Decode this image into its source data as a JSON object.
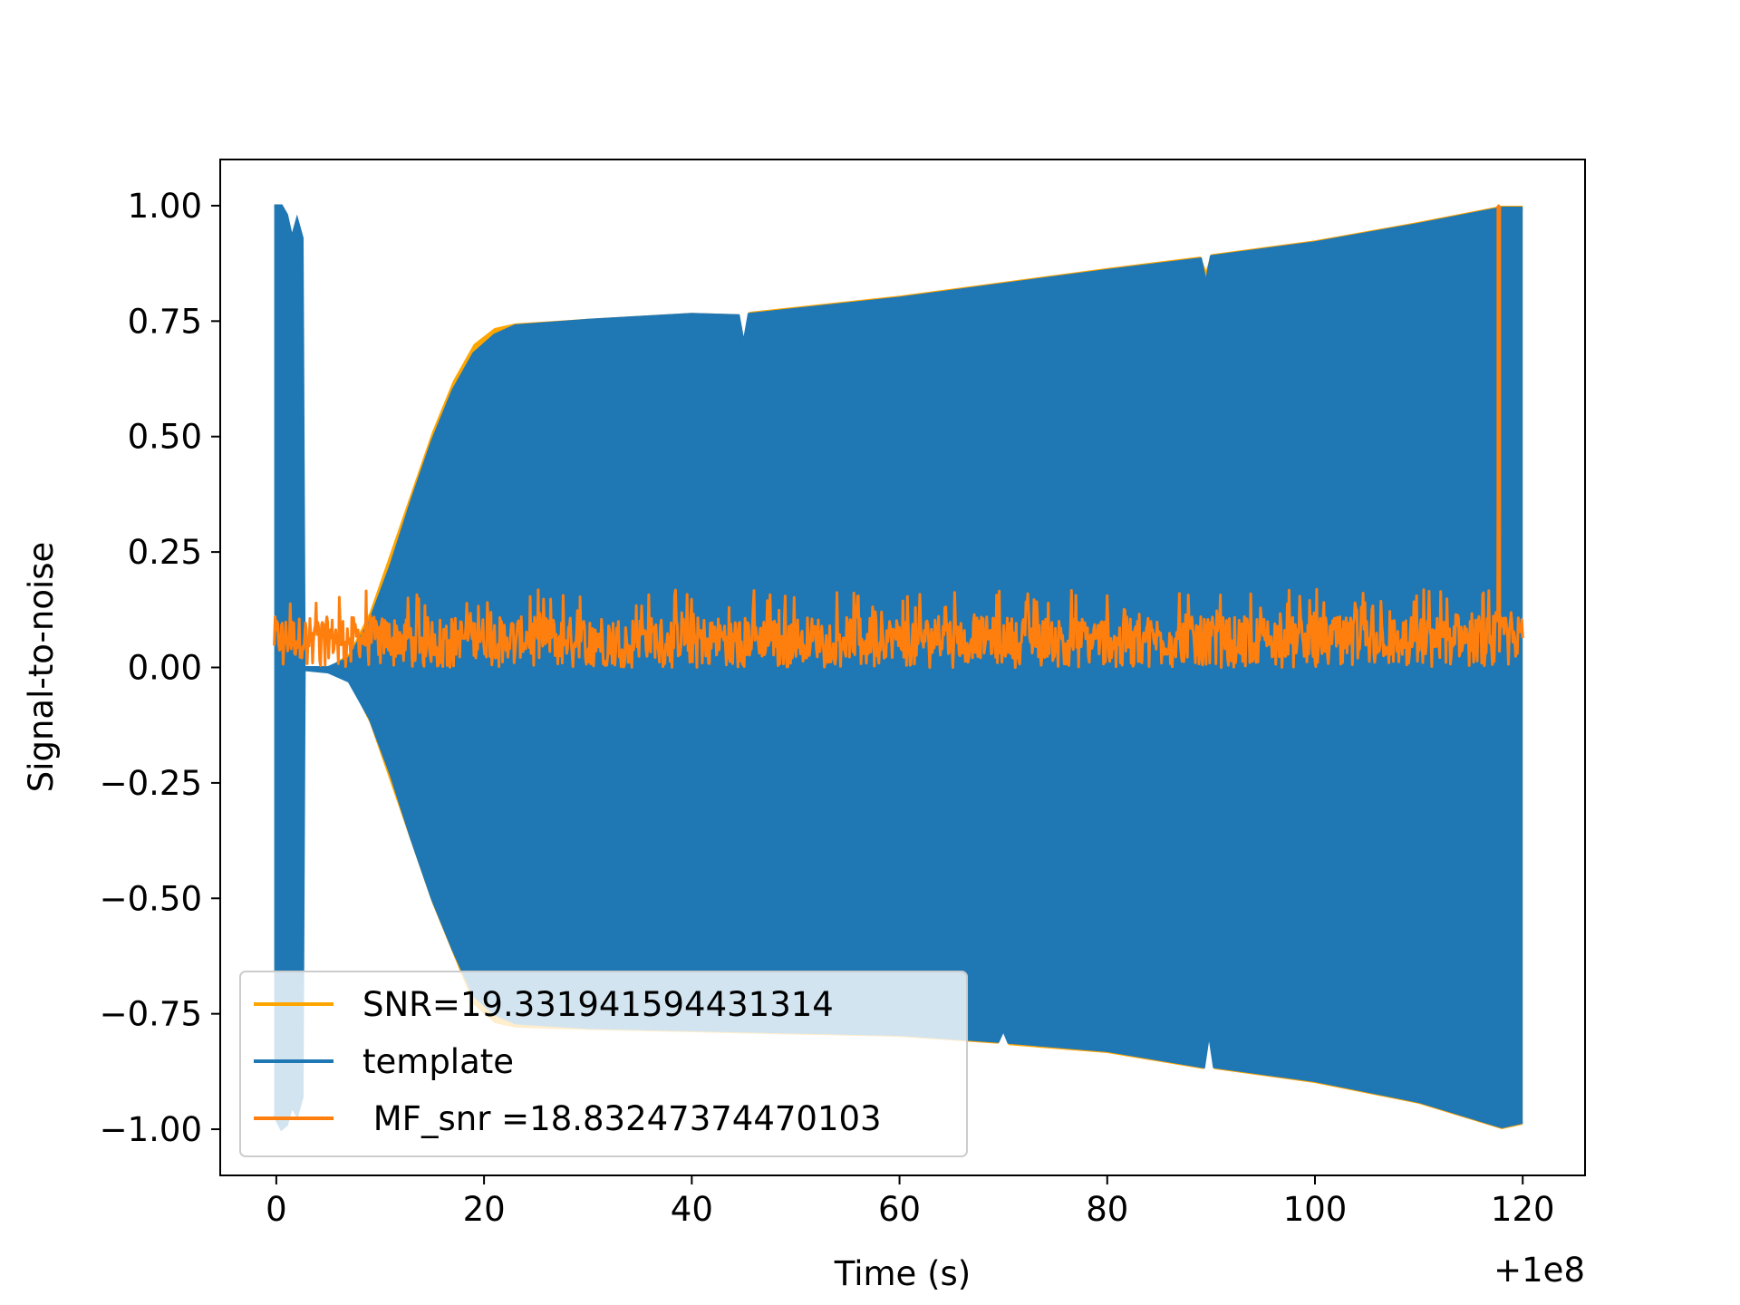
{
  "chart_data": {
    "type": "line",
    "title": "",
    "xlabel": "Time (s)",
    "ylabel": "Signal-to-noise",
    "x_offset_label": "+1e8",
    "xlim": [
      -5.4,
      126
    ],
    "ylim": [
      -1.1,
      1.1
    ],
    "x_ticks": [
      0,
      20,
      40,
      60,
      80,
      100,
      120
    ],
    "y_ticks": [
      1.0,
      0.75,
      0.5,
      0.25,
      0.0,
      -0.25,
      -0.5,
      -0.75,
      -1.0
    ],
    "x_tick_labels": [
      "0",
      "20",
      "40",
      "60",
      "80",
      "100",
      "120"
    ],
    "y_tick_labels": [
      "1.00",
      "0.75",
      "0.50",
      "0.25",
      "0.00",
      "−0.25",
      "−0.50",
      "−0.75",
      "−1.00"
    ],
    "grid": false,
    "legend_position": "lower-left",
    "series": [
      {
        "name": "SNR=19.331941594431314",
        "color": "#ffa500",
        "kind": "envelope",
        "upper": [
          [
            2.5,
            0.0
          ],
          [
            5,
            0.0
          ],
          [
            7,
            0.03
          ],
          [
            9,
            0.12
          ],
          [
            11,
            0.25
          ],
          [
            13,
            0.38
          ],
          [
            15,
            0.51
          ],
          [
            17,
            0.62
          ],
          [
            19,
            0.7
          ],
          [
            21,
            0.735
          ],
          [
            23,
            0.745
          ],
          [
            30,
            0.755
          ],
          [
            40,
            0.768
          ],
          [
            44.5,
            0.765
          ],
          [
            45,
            0.71
          ],
          [
            45.5,
            0.77
          ],
          [
            60,
            0.805
          ],
          [
            80,
            0.865
          ],
          [
            89,
            0.89
          ],
          [
            89.5,
            0.86
          ],
          [
            90,
            0.895
          ],
          [
            100,
            0.925
          ],
          [
            110,
            0.965
          ],
          [
            118,
            1.0
          ],
          [
            120,
            1.0
          ]
        ],
        "lower": [
          [
            2.5,
            -0.005
          ],
          [
            5,
            -0.01
          ],
          [
            7,
            -0.03
          ],
          [
            9,
            -0.12
          ],
          [
            11,
            -0.25
          ],
          [
            13,
            -0.38
          ],
          [
            15,
            -0.51
          ],
          [
            17,
            -0.62
          ],
          [
            19,
            -0.73
          ],
          [
            21,
            -0.77
          ],
          [
            23,
            -0.78
          ],
          [
            30,
            -0.785
          ],
          [
            40,
            -0.79
          ],
          [
            60,
            -0.8
          ],
          [
            69.5,
            -0.815
          ],
          [
            70,
            -0.79
          ],
          [
            70.5,
            -0.818
          ],
          [
            80,
            -0.835
          ],
          [
            89.3,
            -0.87
          ],
          [
            89.8,
            -0.74
          ],
          [
            90.3,
            -0.87
          ],
          [
            100,
            -0.9
          ],
          [
            110,
            -0.945
          ],
          [
            118,
            -1.0
          ],
          [
            120,
            -0.99
          ]
        ]
      },
      {
        "name": "template",
        "color": "#1f77b4",
        "kind": "envelope",
        "upper": [
          [
            -0.2,
            1.0
          ],
          [
            0.5,
            1.0
          ],
          [
            1,
            0.98
          ],
          [
            1.5,
            0.93
          ],
          [
            2,
            0.97
          ],
          [
            2.5,
            0.93
          ],
          [
            2.7,
            0.0
          ],
          [
            5,
            0.0
          ],
          [
            7,
            0.02
          ],
          [
            9,
            0.1
          ],
          [
            11,
            0.22
          ],
          [
            13,
            0.36
          ],
          [
            15,
            0.49
          ],
          [
            17,
            0.6
          ],
          [
            19,
            0.68
          ],
          [
            21,
            0.72
          ],
          [
            23,
            0.74
          ],
          [
            30,
            0.752
          ],
          [
            40,
            0.765
          ],
          [
            44.5,
            0.762
          ],
          [
            45,
            0.7
          ],
          [
            45.5,
            0.765
          ],
          [
            60,
            0.8
          ],
          [
            80,
            0.86
          ],
          [
            89,
            0.885
          ],
          [
            89.5,
            0.83
          ],
          [
            90,
            0.89
          ],
          [
            100,
            0.92
          ],
          [
            110,
            0.96
          ],
          [
            118,
            0.995
          ],
          [
            120,
            0.995
          ]
        ],
        "lower": [
          [
            -0.2,
            -0.97
          ],
          [
            0.5,
            -1.0
          ],
          [
            1,
            -0.99
          ],
          [
            1.5,
            -0.95
          ],
          [
            2,
            -0.97
          ],
          [
            2.5,
            -0.93
          ],
          [
            2.7,
            -0.005
          ],
          [
            5,
            -0.01
          ],
          [
            7,
            -0.03
          ],
          [
            9,
            -0.11
          ],
          [
            11,
            -0.23
          ],
          [
            13,
            -0.37
          ],
          [
            15,
            -0.5
          ],
          [
            17,
            -0.61
          ],
          [
            19,
            -0.71
          ],
          [
            21,
            -0.75
          ],
          [
            23,
            -0.77
          ],
          [
            30,
            -0.78
          ],
          [
            40,
            -0.785
          ],
          [
            60,
            -0.795
          ],
          [
            69.5,
            -0.81
          ],
          [
            70,
            -0.785
          ],
          [
            70.5,
            -0.812
          ],
          [
            80,
            -0.83
          ],
          [
            89.3,
            -0.865
          ],
          [
            89.8,
            -0.79
          ],
          [
            90.3,
            -0.865
          ],
          [
            100,
            -0.895
          ],
          [
            110,
            -0.94
          ],
          [
            118,
            -0.995
          ],
          [
            120,
            -0.985
          ]
        ]
      },
      {
        "name": " MF_snr =18.83247374470103",
        "color": "#ff7f0e",
        "kind": "noisy_line",
        "baseline": 0.055,
        "noise_range": [
          0.0,
          0.17
        ],
        "x_range": [
          -0.2,
          120
        ],
        "spike": {
          "x": 117.7,
          "y": 1.0
        }
      }
    ]
  }
}
